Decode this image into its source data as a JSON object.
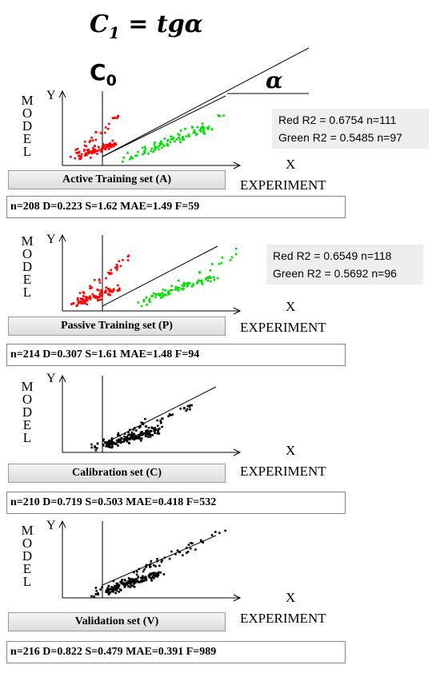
{
  "header": {
    "formula_c": "C",
    "formula_sub": "1",
    "formula_rest": " = tgα",
    "c0_main": "C",
    "c0_sub": "0",
    "alpha": "α"
  },
  "axis_y_label": "Y",
  "axis_model_letters": [
    "M",
    "O",
    "D",
    "E",
    "L"
  ],
  "axis_x_label": "X",
  "axis_experiment_label": "EXPERIMENT",
  "panels": [
    {
      "id": "active",
      "button_label": "Active Training set (A)",
      "stats": "n=208  D=0.223  S=1.62  MAE=1.49  F=59",
      "legend": [
        "Red R2 = 0.6754 n=111",
        "Green R2 = 0.5485 n=97"
      ]
    },
    {
      "id": "passive",
      "button_label": "Passive Training set (P)",
      "stats": "n=214  D=0.307  S=1.61  MAE=1.48  F=94",
      "legend": [
        "Red R2 = 0.6549 n=118",
        "Green R2 = 0.5692 n=96"
      ]
    },
    {
      "id": "calibration",
      "button_label": "Calibration set (C)",
      "stats": "n=210  D=0.719  S=0.503  MAE=0.418  F=532",
      "legend": []
    },
    {
      "id": "validation",
      "button_label": "Validation set (V)",
      "stats": "n=216  D=0.822  S=0.479  MAE=0.391  F=989",
      "legend": []
    }
  ],
  "colors": {
    "red": "#ff0000",
    "green": "#00e000",
    "black": "#000000"
  },
  "chart_data": [
    {
      "type": "scatter",
      "title": "Active Training set (A)",
      "xlabel": "EXPERIMENT",
      "ylabel": "MODEL",
      "series": [
        {
          "name": "Red R2 = 0.6754 n=111",
          "color": "#ff0000",
          "n": 111
        },
        {
          "name": "Green R2 = 0.5485 n=97",
          "color": "#00e000",
          "n": 97
        }
      ]
    },
    {
      "type": "scatter",
      "title": "Passive Training set (P)",
      "xlabel": "EXPERIMENT",
      "ylabel": "MODEL",
      "series": [
        {
          "name": "Red R2 = 0.6549 n=118",
          "color": "#ff0000",
          "n": 118
        },
        {
          "name": "Green R2 = 0.5692 n=96",
          "color": "#00e000",
          "n": 96
        }
      ]
    },
    {
      "type": "scatter",
      "title": "Calibration set (C)",
      "xlabel": "EXPERIMENT",
      "ylabel": "MODEL",
      "series": [
        {
          "color": "#000000",
          "n": 210
        }
      ]
    },
    {
      "type": "scatter",
      "title": "Validation set (V)",
      "xlabel": "EXPERIMENT",
      "ylabel": "MODEL",
      "series": [
        {
          "color": "#000000",
          "n": 216
        }
      ]
    }
  ]
}
